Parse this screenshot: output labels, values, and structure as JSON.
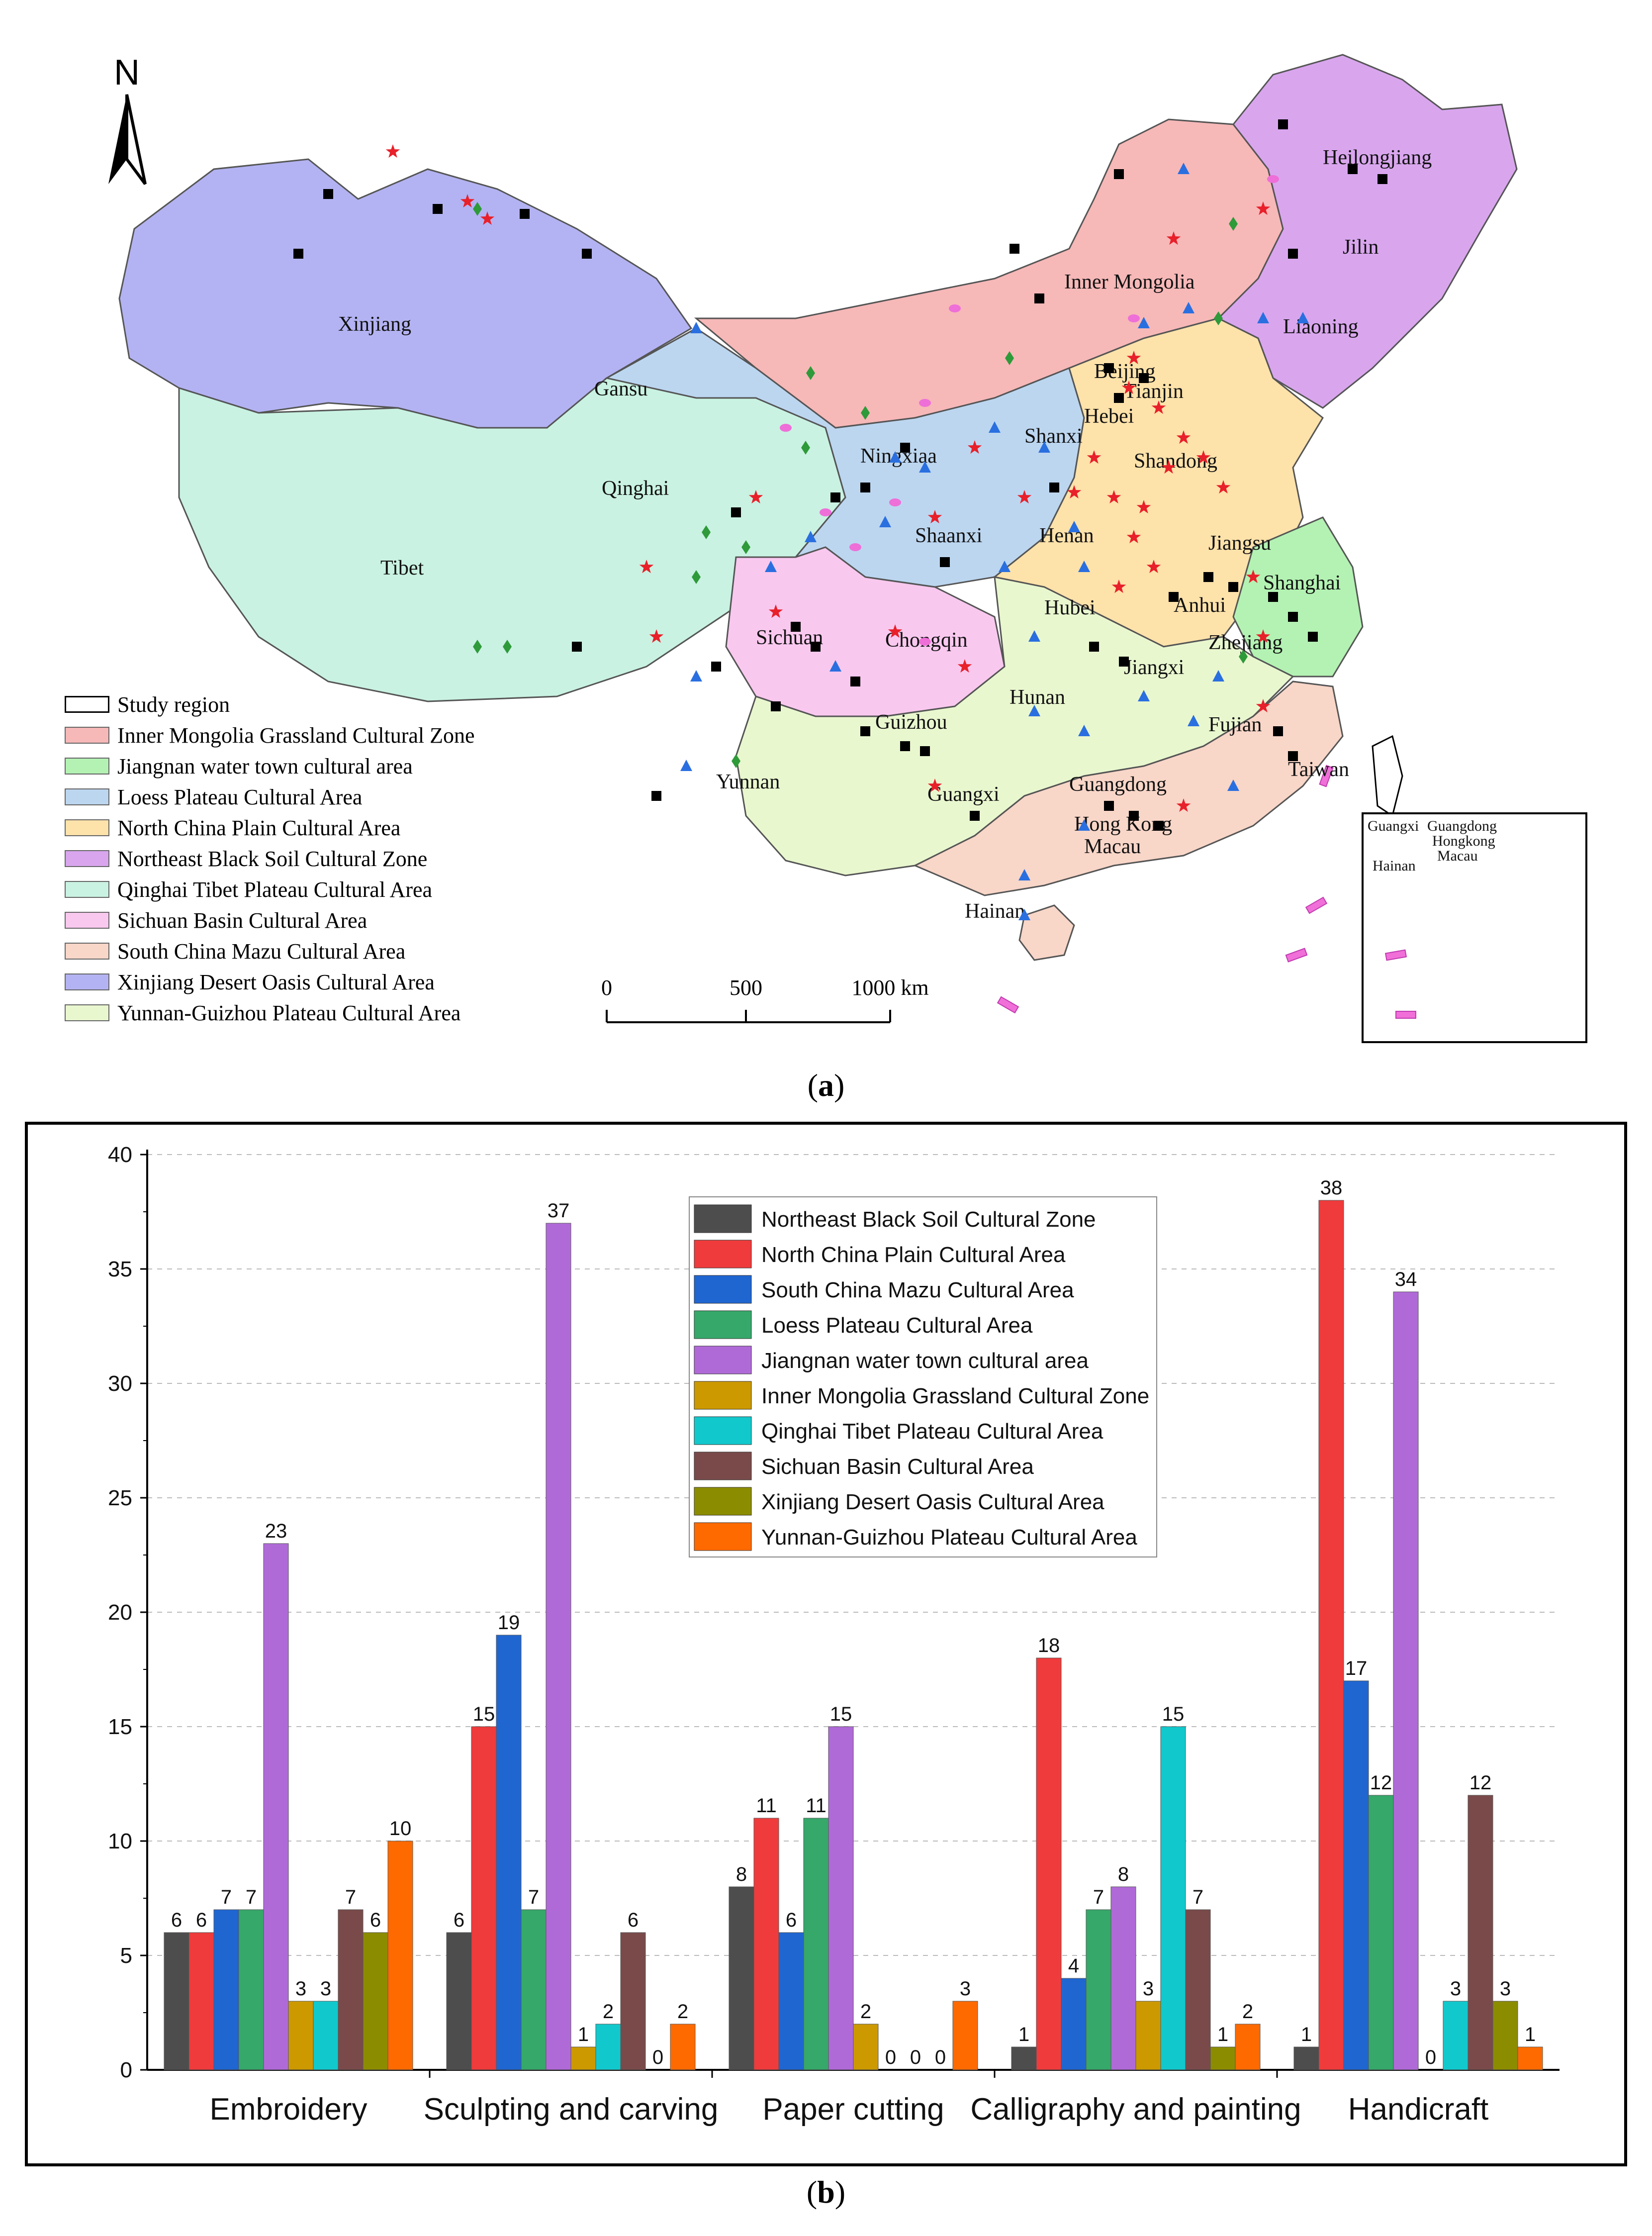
{
  "map": {
    "north_label": "N",
    "provinces": [
      {
        "id": "heilongjiang",
        "name": "Heilongjiang"
      },
      {
        "id": "jilin",
        "name": "Jilin"
      },
      {
        "id": "liaoning",
        "name": "Liaoning"
      },
      {
        "id": "inner-mongolia",
        "name": "Inner Mongolia"
      },
      {
        "id": "xinjiang",
        "name": "Xinjiang"
      },
      {
        "id": "gansu",
        "name": "Gansu"
      },
      {
        "id": "ningxia",
        "name": "Ningxiaa"
      },
      {
        "id": "qinghai",
        "name": "Qinghai"
      },
      {
        "id": "tibet",
        "name": "Tibet"
      },
      {
        "id": "beijing",
        "name": "Beijing"
      },
      {
        "id": "tianjin",
        "name": "Tianjin"
      },
      {
        "id": "hebei",
        "name": "Hebei"
      },
      {
        "id": "shanxi",
        "name": "Shanxi"
      },
      {
        "id": "shandong",
        "name": "Shandong"
      },
      {
        "id": "shaanxi",
        "name": "Shaanxi"
      },
      {
        "id": "henan",
        "name": "Henan"
      },
      {
        "id": "jiangsu",
        "name": "Jiangsu"
      },
      {
        "id": "shanghai",
        "name": "Shanghai"
      },
      {
        "id": "anhui",
        "name": "Anhui"
      },
      {
        "id": "hubei",
        "name": "Hubei"
      },
      {
        "id": "sichuan",
        "name": "Sichuan"
      },
      {
        "id": "chongqing",
        "name": "Chongqin"
      },
      {
        "id": "zhejiang",
        "name": "Zhejiang"
      },
      {
        "id": "jiangxi",
        "name": "Jiangxi"
      },
      {
        "id": "hunan",
        "name": "Hunan"
      },
      {
        "id": "guizhou",
        "name": "Guizhou"
      },
      {
        "id": "fujian",
        "name": "Fujian"
      },
      {
        "id": "taiwan",
        "name": "Taiwan"
      },
      {
        "id": "yunnan",
        "name": "Yunnan"
      },
      {
        "id": "guangxi",
        "name": "Guangxi"
      },
      {
        "id": "guangdong",
        "name": "Guangdong"
      },
      {
        "id": "hongkong",
        "name": "Hong Kong"
      },
      {
        "id": "macau",
        "name": "Macau"
      },
      {
        "id": "hainan",
        "name": "Hainan"
      }
    ],
    "inset_labels": [
      "Guangxi",
      "Guangdong",
      "Hongkong",
      "Macau",
      "Hainan"
    ],
    "legend": [
      {
        "label": "Study region",
        "color": "#ffffff",
        "outline": true
      },
      {
        "label": "Inner Mongolia Grassland Cultural Zone",
        "color": "#f7b8b8"
      },
      {
        "label": "Jiangnan water town cultural area",
        "color": "#b3f2b3"
      },
      {
        "label": "Loess Plateau Cultural Area",
        "color": "#bcd6f0"
      },
      {
        "label": "North China Plain Cultural Area",
        "color": "#fde2aa"
      },
      {
        "label": "Northeast Black Soil Cultural Zone",
        "color": "#d9a6ee"
      },
      {
        "label": "Qinghai Tibet Plateau Cultural Area",
        "color": "#c9f2e2"
      },
      {
        "label": "Sichuan Basin Cultural Area",
        "color": "#f9c8ef"
      },
      {
        "label": "South China Mazu Cultural Area",
        "color": "#f8d6c8"
      },
      {
        "label": "Xinjiang Desert Oasis Cultural Area",
        "color": "#b3b3f3"
      },
      {
        "label": "Yunnan-Guizhou Plateau Cultural Area",
        "color": "#e9f7cf"
      }
    ],
    "scale": {
      "ticks": [
        "0",
        "500",
        "1000 km"
      ]
    }
  },
  "caption_a_letter": "a",
  "caption_b_letter": "b",
  "chart_data": {
    "type": "bar",
    "categories": [
      "Embroidery",
      "Sculpting and carving",
      "Paper cutting",
      "Calligraphy and painting",
      "Handicraft"
    ],
    "ylim": [
      0,
      40
    ],
    "yticks": [
      0,
      5,
      10,
      15,
      20,
      25,
      30,
      35,
      40
    ],
    "grid": true,
    "legend_position": "top-center",
    "series": [
      {
        "name": "Northeast Black Soil Cultural Zone",
        "color": "#4d4d4d",
        "values": [
          6,
          6,
          8,
          1,
          1
        ]
      },
      {
        "name": "North China Plain Cultural Area",
        "color": "#ef3b3b",
        "values": [
          6,
          15,
          11,
          18,
          38
        ]
      },
      {
        "name": "South China Mazu Cultural Area",
        "color": "#1f66d1",
        "values": [
          7,
          19,
          6,
          4,
          17
        ]
      },
      {
        "name": "Loess Plateau Cultural Area",
        "color": "#36a86a",
        "values": [
          7,
          7,
          11,
          7,
          12
        ]
      },
      {
        "name": "Jiangnan water town cultural area",
        "color": "#b06ad8",
        "values": [
          23,
          37,
          15,
          8,
          34
        ]
      },
      {
        "name": "Inner Mongolia Grassland Cultural Zone",
        "color": "#cc9900",
        "values": [
          3,
          1,
          2,
          3,
          0
        ]
      },
      {
        "name": "Qinghai Tibet Plateau Cultural Area",
        "color": "#11c9cc",
        "values": [
          3,
          2,
          0,
          15,
          3
        ]
      },
      {
        "name": "Sichuan Basin Cultural Area",
        "color": "#7a4a4a",
        "values": [
          7,
          6,
          0,
          7,
          12
        ]
      },
      {
        "name": "Xinjiang Desert Oasis Cultural Area",
        "color": "#8c8c00",
        "values": [
          6,
          0,
          0,
          1,
          3
        ]
      },
      {
        "name": "Yunnan-Guizhou Plateau Cultural Area",
        "color": "#ff6a00",
        "values": [
          10,
          2,
          3,
          2,
          1
        ]
      }
    ]
  }
}
